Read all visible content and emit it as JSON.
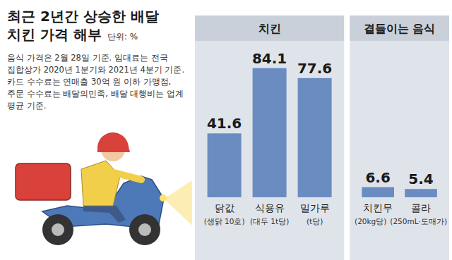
{
  "chart_data": {
    "type": "bar",
    "title": "최근 2년간 상승한 배달 치킨 가격 해부",
    "subtitle": "단위: %",
    "annotations": [
      "음식 가격은 2월 28일 기준. 임대료는 전국 집합상가 2020년 1분기와 2021년 4분기 기준. 카드 수수료는 연매출 30억 원 이하 가맹점, 주문 수수료는 배달의민족, 배달 대행비는 업계 평균 기준."
    ],
    "color": "#6a8cc0",
    "ylim": [
      0,
      100
    ],
    "tick_labels": false,
    "data_labels": true,
    "panels": [
      {
        "title": "치킨",
        "categories": [
          "닭값",
          "식용유",
          "밀가루"
        ],
        "category_details": [
          "(생닭 10호)",
          "(대두 1t당)",
          "(t당)"
        ],
        "values": [
          41.6,
          84.1,
          77.6
        ]
      },
      {
        "title": "곁들이는 음식",
        "categories": [
          "치킨무",
          "콜라"
        ],
        "category_details": [
          "(20kg당)",
          "(250mL·도매가)"
        ],
        "values": [
          6.6,
          5.4
        ]
      }
    ]
  }
}
